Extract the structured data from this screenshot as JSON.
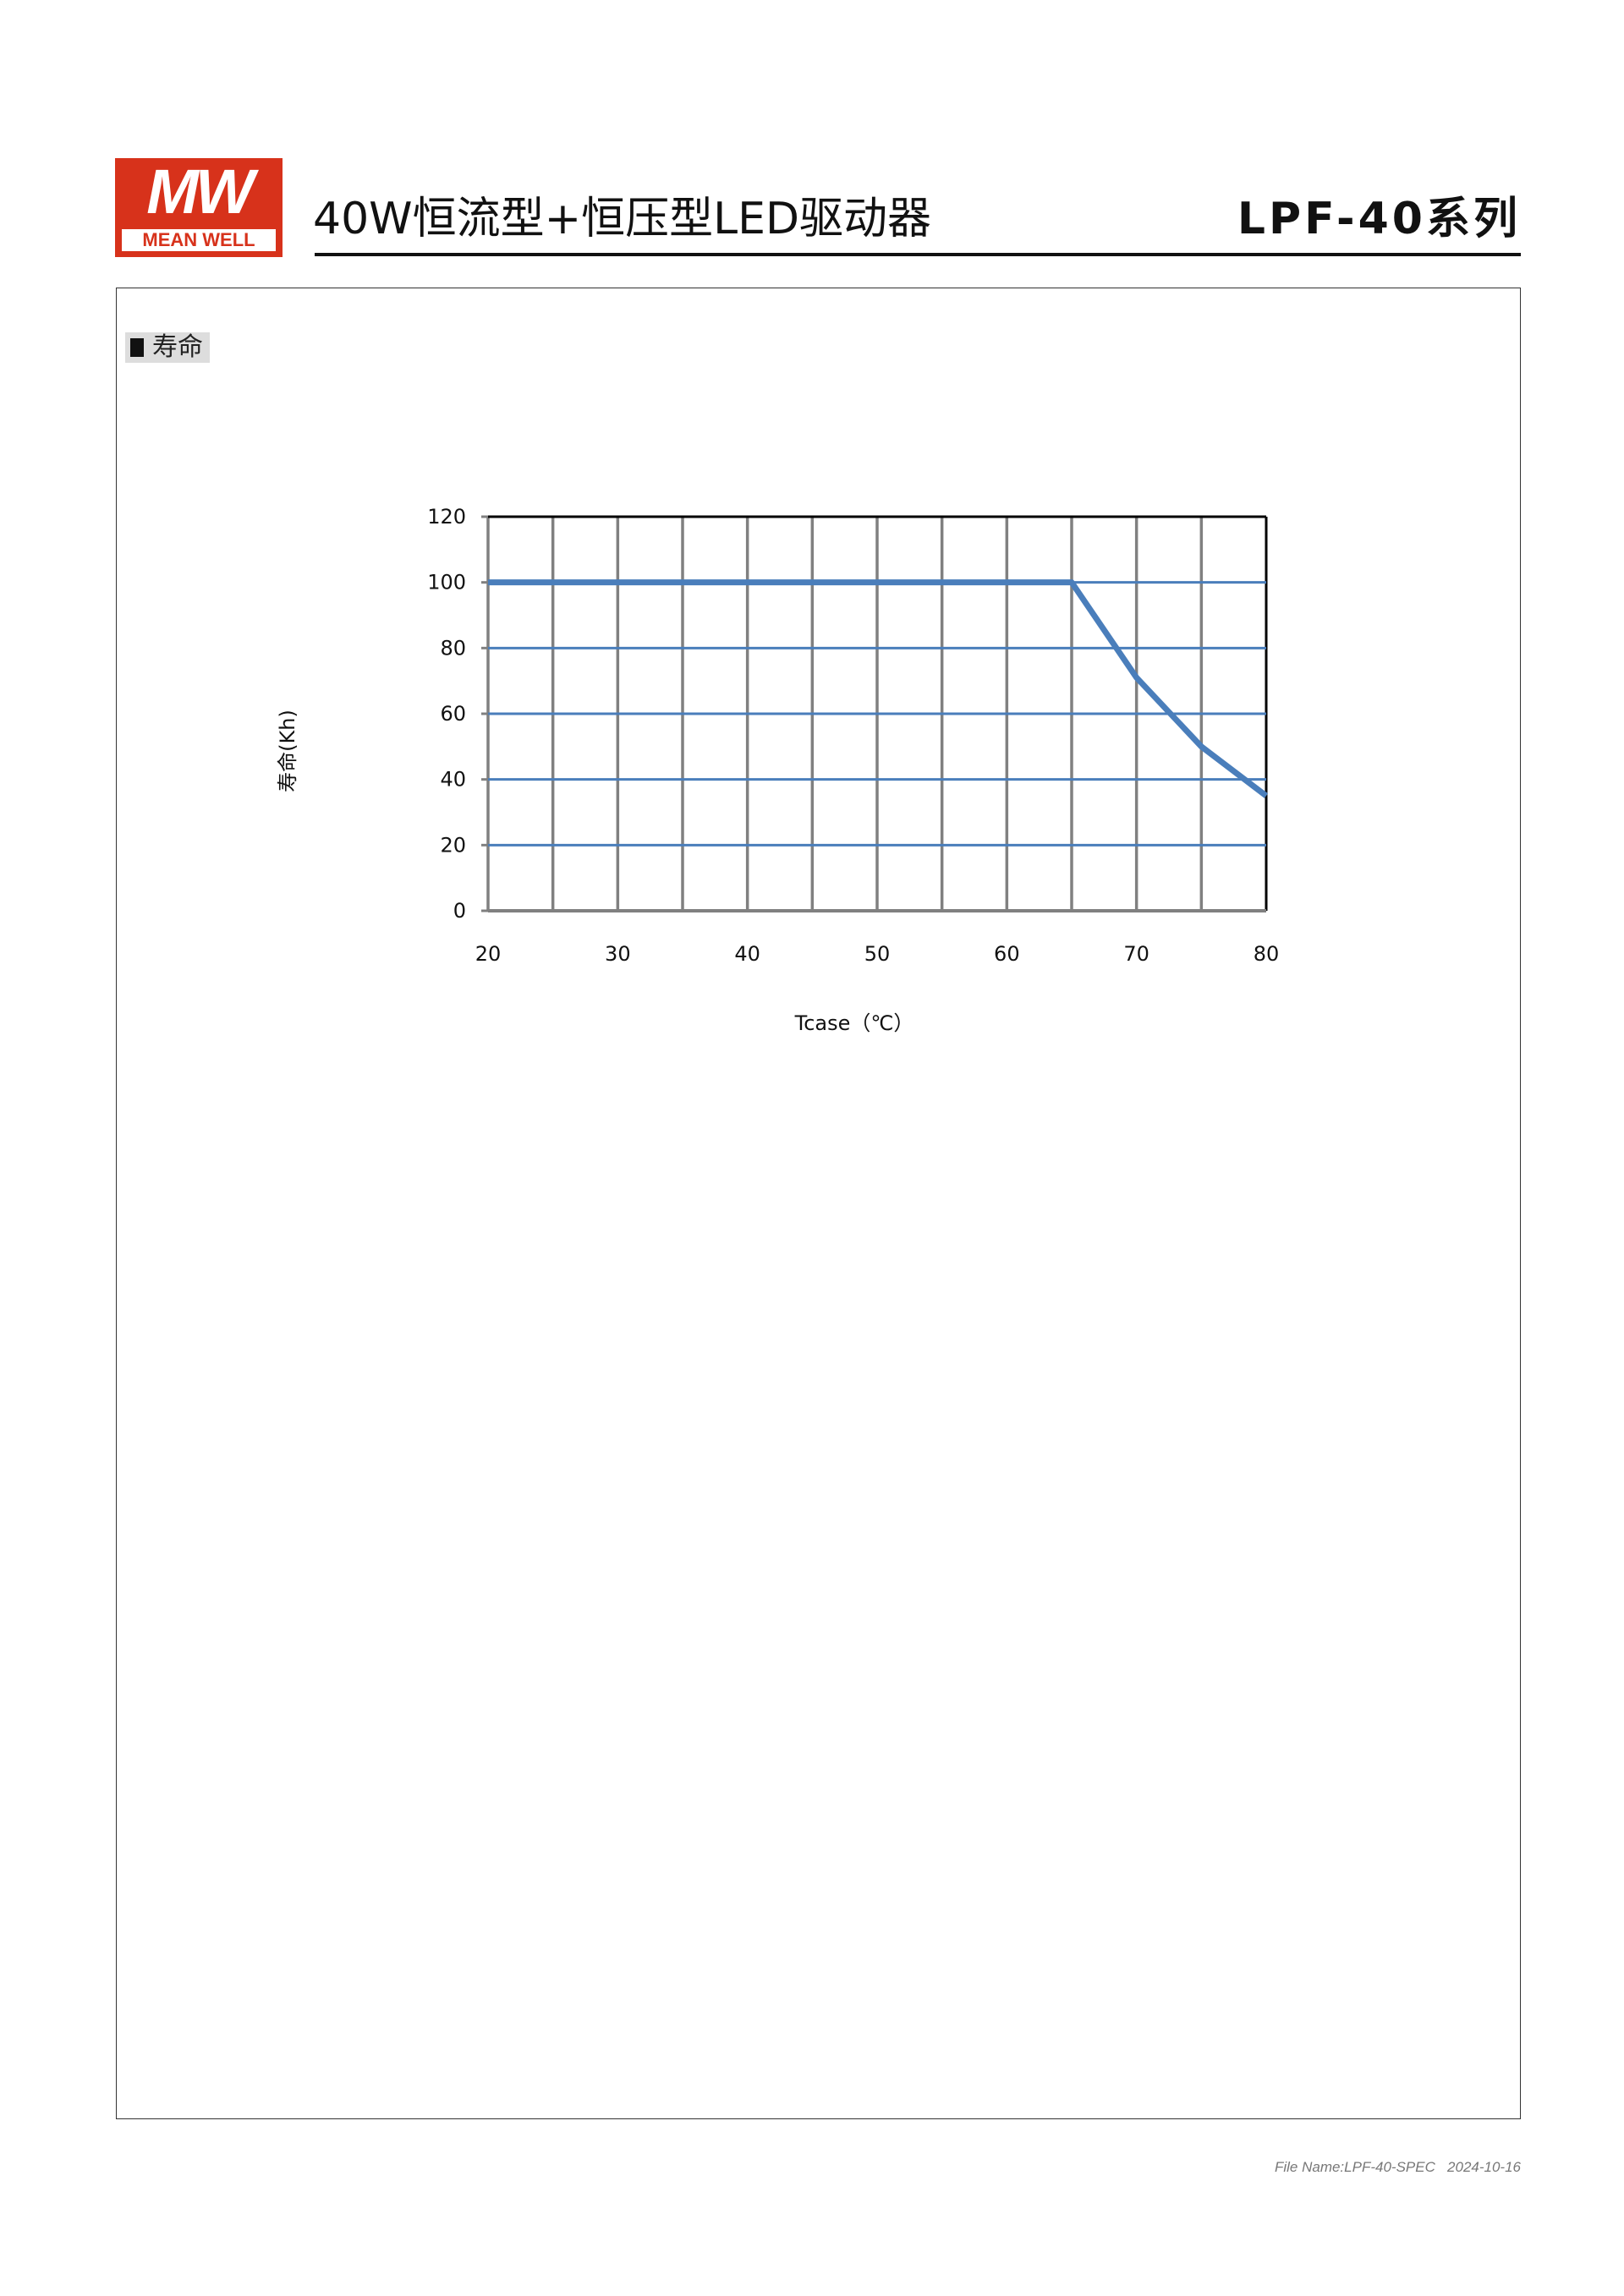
{
  "header": {
    "logo_mark": "MW",
    "logo_text": "MEAN WELL",
    "title": "40W恒流型+恒压型LED驱动器",
    "series": "LPF-40系列"
  },
  "section": {
    "title": "寿命"
  },
  "chart_data": {
    "type": "line",
    "title": "",
    "xlabel": "Tcase（℃）",
    "ylabel": "寿命(Kh)",
    "xlim": [
      20,
      80
    ],
    "ylim": [
      0,
      120
    ],
    "xticks": [
      20,
      30,
      40,
      50,
      60,
      70,
      80
    ],
    "yticks": [
      0,
      20,
      40,
      60,
      80,
      100,
      120
    ],
    "grid": true,
    "x_grid_step": 5,
    "series": [
      {
        "x": [
          20,
          65,
          70,
          75,
          80
        ],
        "y": [
          100,
          100,
          71,
          50,
          35
        ],
        "color": "#4a7ebb"
      }
    ],
    "colors": {
      "h_grid": "#4a7ebb",
      "v_grid": "#808080",
      "border": "#000000"
    }
  },
  "footer": {
    "file_name": "File Name:LPF-40-SPEC",
    "date": "2024-10-16"
  }
}
